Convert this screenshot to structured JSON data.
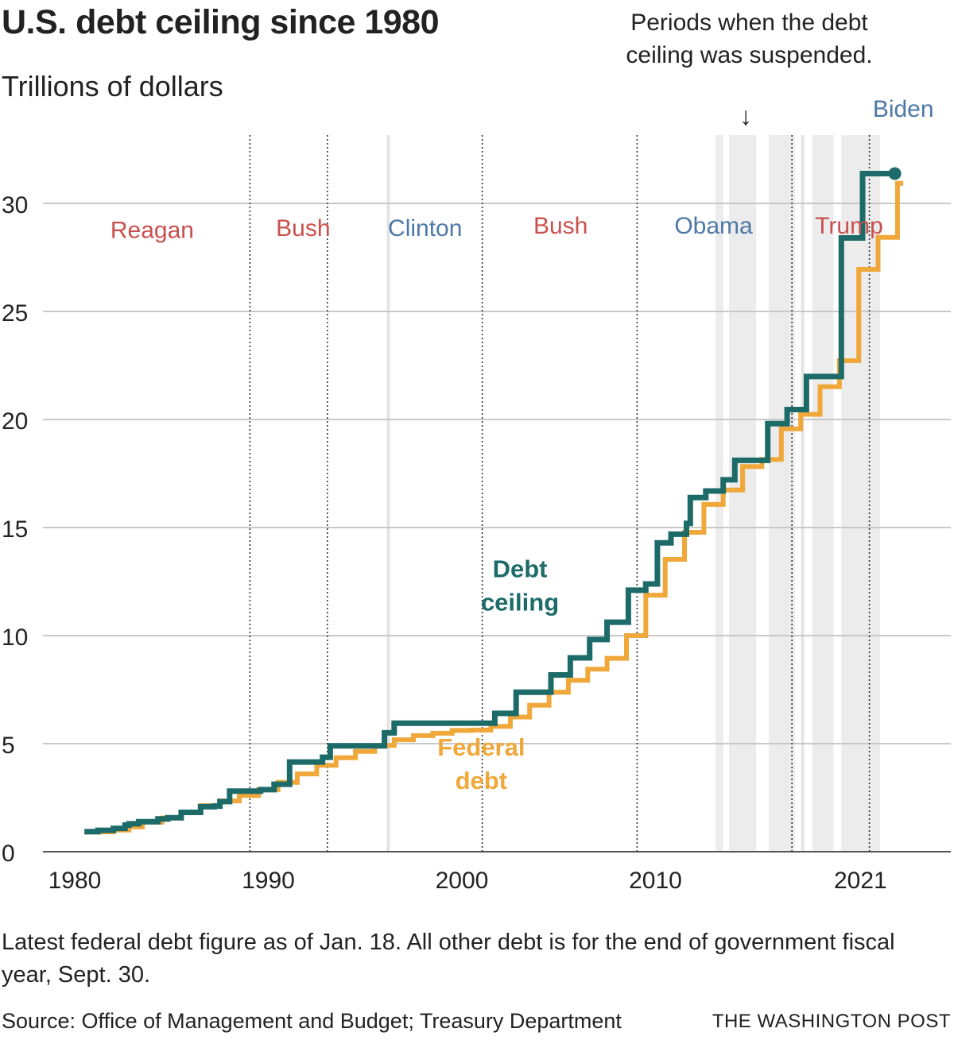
{
  "chart_data": {
    "type": "line",
    "title": "U.S. debt ceiling since 1980",
    "subtitle": "Trillions of dollars",
    "ylim": [
      0,
      32
    ],
    "yticks": [
      0,
      5,
      10,
      15,
      20,
      25,
      30
    ],
    "xlim": [
      1980,
      2023
    ],
    "xtick_labels": [
      {
        "label": "1980",
        "year": 1980
      },
      {
        "label": "1990",
        "year": 1990
      },
      {
        "label": "2000",
        "year": 2000
      },
      {
        "label": "2010",
        "year": 2010
      },
      {
        "label": "2021",
        "year": 2021
      }
    ],
    "grid": true,
    "suspension_note": "Periods when the debt ceiling was suspended.",
    "suspension_arrow": "↓",
    "suspension_periods": [
      [
        2013.1,
        2013.5
      ],
      [
        2013.8,
        2015.2
      ],
      [
        2015.85,
        2017.2
      ],
      [
        2018.1,
        2019.2
      ],
      [
        2019.6,
        2021.6
      ]
    ],
    "light_markers": [
      1996.2,
      2017.6
    ],
    "presidents": [
      {
        "name": "Reagan",
        "start": 1981.05,
        "end": 1989.05,
        "color": "#c9504d",
        "label_x": 1984.0,
        "label_y": 28.4,
        "line_end": true
      },
      {
        "name": "Bush",
        "start": 1989.05,
        "end": 1993.05,
        "color": "#c9504d",
        "label_x": 1991.8,
        "label_y": 28.5,
        "line_end": true
      },
      {
        "name": "Clinton",
        "start": 1993.05,
        "end": 2001.05,
        "color": "#4c78a8",
        "label_x": 1998.1,
        "label_y": 28.5,
        "line_end": true
      },
      {
        "name": "Bush",
        "start": 2001.05,
        "end": 2009.05,
        "color": "#c9504d",
        "label_x": 2005.1,
        "label_y": 28.6,
        "line_end": true
      },
      {
        "name": "Obama",
        "start": 2009.05,
        "end": 2017.05,
        "color": "#4c78a8",
        "label_x": 2013.0,
        "label_y": 28.6,
        "line_end": true
      },
      {
        "name": "Trump",
        "start": 2017.05,
        "end": 2021.05,
        "color": "#c9504d",
        "label_x": 2020.0,
        "label_y": 28.6,
        "line_end": true
      },
      {
        "name": "Biden",
        "start": 2021.05,
        "end": 2023.0,
        "color": "#4c78a8",
        "label_x": 2022.8,
        "label_y": 34.0,
        "line_end": false
      }
    ],
    "series": [
      {
        "name": "Debt ceiling",
        "color": "#1d6b68",
        "label_lines": [
          "Debt",
          "ceiling"
        ],
        "label_x": 2003.0,
        "label_y": 12.7,
        "steps": [
          [
            1980.5,
            0.93
          ],
          [
            1981.2,
            0.99
          ],
          [
            1982.0,
            1.08
          ],
          [
            1982.6,
            1.23
          ],
          [
            1982.8,
            1.29
          ],
          [
            1983.3,
            1.39
          ],
          [
            1984.3,
            1.52
          ],
          [
            1984.8,
            1.57
          ],
          [
            1985.5,
            1.82
          ],
          [
            1986.5,
            2.08
          ],
          [
            1987.2,
            2.11
          ],
          [
            1987.5,
            2.32
          ],
          [
            1988.0,
            2.8
          ],
          [
            1989.6,
            2.87
          ],
          [
            1990.3,
            3.12
          ],
          [
            1991.1,
            4.15
          ],
          [
            1992.8,
            4.37
          ],
          [
            1993.2,
            4.9
          ],
          [
            1996.0,
            5.5
          ],
          [
            1996.5,
            5.95
          ],
          [
            2000.8,
            5.95
          ],
          [
            2001.7,
            6.4
          ],
          [
            2002.8,
            7.38
          ],
          [
            2004.6,
            8.18
          ],
          [
            2005.6,
            8.97
          ],
          [
            2006.6,
            9.82
          ],
          [
            2007.5,
            10.62
          ],
          [
            2008.6,
            12.1
          ],
          [
            2009.5,
            12.39
          ],
          [
            2010.1,
            14.29
          ],
          [
            2010.8,
            14.69
          ],
          [
            2011.6,
            15.19
          ],
          [
            2011.8,
            16.39
          ],
          [
            2012.6,
            16.69
          ],
          [
            2013.5,
            17.21
          ],
          [
            2014.1,
            18.11
          ],
          [
            2015.8,
            19.81
          ],
          [
            2016.8,
            20.46
          ],
          [
            2017.8,
            21.99
          ],
          [
            2019.6,
            28.4
          ],
          [
            2020.7,
            31.38
          ],
          [
            2022.2,
            31.38
          ]
        ],
        "end_marker": true
      },
      {
        "name": "Federal debt",
        "color": "#f0a83a",
        "label_lines": [
          "Federal",
          "debt"
        ],
        "label_x": 2001.0,
        "label_y": 4.45,
        "steps": [
          [
            1980.5,
            0.91
          ],
          [
            1981.3,
            0.92
          ],
          [
            1982.0,
            1.0
          ],
          [
            1982.8,
            1.15
          ],
          [
            1983.5,
            1.37
          ],
          [
            1984.5,
            1.56
          ],
          [
            1985.5,
            1.82
          ],
          [
            1986.5,
            2.13
          ],
          [
            1987.5,
            2.35
          ],
          [
            1988.5,
            2.6
          ],
          [
            1989.5,
            2.87
          ],
          [
            1990.5,
            3.21
          ],
          [
            1991.5,
            3.6
          ],
          [
            1992.5,
            4.0
          ],
          [
            1993.5,
            4.35
          ],
          [
            1994.5,
            4.64
          ],
          [
            1995.5,
            4.92
          ],
          [
            1996.5,
            5.18
          ],
          [
            1997.5,
            5.37
          ],
          [
            1998.5,
            5.48
          ],
          [
            1999.5,
            5.61
          ],
          [
            2000.5,
            5.63
          ],
          [
            2001.5,
            5.8
          ],
          [
            2002.5,
            6.23
          ],
          [
            2003.5,
            6.78
          ],
          [
            2004.5,
            7.38
          ],
          [
            2005.5,
            7.93
          ],
          [
            2006.5,
            8.45
          ],
          [
            2007.5,
            8.95
          ],
          [
            2008.5,
            10.0
          ],
          [
            2009.5,
            11.87
          ],
          [
            2010.5,
            13.53
          ],
          [
            2011.5,
            14.78
          ],
          [
            2012.5,
            16.07
          ],
          [
            2013.5,
            16.74
          ],
          [
            2014.5,
            17.82
          ],
          [
            2015.5,
            18.15
          ],
          [
            2016.5,
            19.57
          ],
          [
            2017.5,
            20.24
          ],
          [
            2018.5,
            21.52
          ],
          [
            2019.5,
            22.72
          ],
          [
            2020.5,
            26.95
          ],
          [
            2021.5,
            28.43
          ],
          [
            2022.5,
            30.93
          ],
          [
            2022.8,
            30.93
          ]
        ],
        "end_marker": false
      }
    ]
  },
  "footnote": "Latest federal debt figure as of Jan. 18. All other debt is for the end of government fiscal year, Sept. 30.",
  "source": "Source: Office of Management and Budget; Treasury Department",
  "credit": "THE WASHINGTON POST"
}
